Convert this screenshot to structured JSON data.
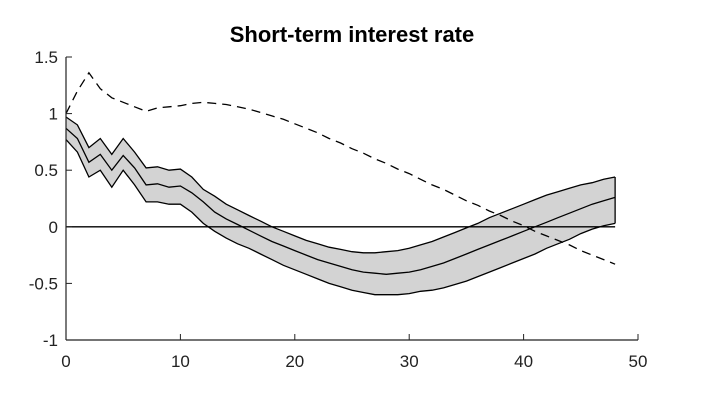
{
  "chart_data": {
    "type": "line",
    "title": "Short-term interest rate",
    "xlabel": "",
    "ylabel": "",
    "xlim": [
      0,
      50
    ],
    "ylim": [
      -1,
      1.5
    ],
    "x_ticks": [
      "0",
      "10",
      "20",
      "30",
      "40",
      "50"
    ],
    "y_ticks": [
      "-1",
      "-0.5",
      "0",
      "0.5",
      "1",
      "1.5"
    ],
    "grid": false,
    "legend": "none",
    "colors": {
      "band_fill": "#d3d3d3",
      "line": "#000000"
    },
    "series": [
      {
        "role": "median",
        "style": "solid",
        "x": [
          0,
          1,
          2,
          3,
          4,
          5,
          6,
          7,
          8,
          9,
          10,
          11,
          12,
          13,
          14,
          15,
          16,
          17,
          18,
          19,
          20,
          21,
          22,
          23,
          24,
          25,
          26,
          27,
          28,
          29,
          30,
          31,
          32,
          33,
          34,
          35,
          36,
          37,
          38,
          39,
          40,
          41,
          42,
          43,
          44,
          45,
          46,
          47,
          48
        ],
        "y": [
          0.87,
          0.78,
          0.57,
          0.64,
          0.5,
          0.63,
          0.52,
          0.37,
          0.38,
          0.35,
          0.36,
          0.3,
          0.22,
          0.13,
          0.07,
          0.02,
          -0.03,
          -0.08,
          -0.13,
          -0.17,
          -0.21,
          -0.25,
          -0.29,
          -0.32,
          -0.35,
          -0.38,
          -0.4,
          -0.41,
          -0.42,
          -0.41,
          -0.4,
          -0.38,
          -0.35,
          -0.32,
          -0.28,
          -0.24,
          -0.2,
          -0.16,
          -0.12,
          -0.08,
          -0.04,
          0,
          0.04,
          0.08,
          0.12,
          0.16,
          0.2,
          0.23,
          0.26
        ]
      },
      {
        "role": "band-upper",
        "style": "solid",
        "x": [
          0,
          1,
          2,
          3,
          4,
          5,
          6,
          7,
          8,
          9,
          10,
          11,
          12,
          13,
          14,
          15,
          16,
          17,
          18,
          19,
          20,
          21,
          22,
          23,
          24,
          25,
          26,
          27,
          28,
          29,
          30,
          31,
          32,
          33,
          34,
          35,
          36,
          37,
          38,
          39,
          40,
          41,
          42,
          43,
          44,
          45,
          46,
          47,
          48
        ],
        "y": [
          0.97,
          0.9,
          0.7,
          0.78,
          0.64,
          0.78,
          0.66,
          0.52,
          0.53,
          0.5,
          0.51,
          0.44,
          0.33,
          0.27,
          0.2,
          0.15,
          0.1,
          0.05,
          0,
          -0.04,
          -0.08,
          -0.12,
          -0.15,
          -0.18,
          -0.2,
          -0.22,
          -0.23,
          -0.23,
          -0.22,
          -0.21,
          -0.19,
          -0.16,
          -0.13,
          -0.09,
          -0.05,
          -0.01,
          0.03,
          0.08,
          0.12,
          0.16,
          0.2,
          0.24,
          0.28,
          0.31,
          0.34,
          0.37,
          0.39,
          0.42,
          0.44
        ]
      },
      {
        "role": "band-lower",
        "style": "solid",
        "x": [
          0,
          1,
          2,
          3,
          4,
          5,
          6,
          7,
          8,
          9,
          10,
          11,
          12,
          13,
          14,
          15,
          16,
          17,
          18,
          19,
          20,
          21,
          22,
          23,
          24,
          25,
          26,
          27,
          28,
          29,
          30,
          31,
          32,
          33,
          34,
          35,
          36,
          37,
          38,
          39,
          40,
          41,
          42,
          43,
          44,
          45,
          46,
          47,
          48
        ],
        "y": [
          0.77,
          0.66,
          0.44,
          0.5,
          0.35,
          0.5,
          0.37,
          0.22,
          0.22,
          0.2,
          0.2,
          0.13,
          0.03,
          -0.04,
          -0.1,
          -0.15,
          -0.19,
          -0.24,
          -0.29,
          -0.34,
          -0.38,
          -0.42,
          -0.46,
          -0.5,
          -0.53,
          -0.56,
          -0.58,
          -0.6,
          -0.6,
          -0.6,
          -0.59,
          -0.57,
          -0.56,
          -0.54,
          -0.51,
          -0.48,
          -0.44,
          -0.4,
          -0.36,
          -0.32,
          -0.28,
          -0.24,
          -0.19,
          -0.15,
          -0.11,
          -0.06,
          -0.02,
          0.01,
          0.03
        ]
      },
      {
        "role": "comparison",
        "style": "dashed",
        "x": [
          0,
          1,
          2,
          3,
          4,
          5,
          6,
          7,
          8,
          9,
          10,
          11,
          12,
          13,
          14,
          15,
          16,
          17,
          18,
          19,
          20,
          21,
          22,
          23,
          24,
          25,
          26,
          27,
          28,
          29,
          30,
          31,
          32,
          33,
          34,
          35,
          36,
          37,
          38,
          39,
          40,
          41,
          42,
          43,
          44,
          45,
          46,
          47,
          48
        ],
        "y": [
          1,
          1.2,
          1.36,
          1.22,
          1.14,
          1.1,
          1.06,
          1.02,
          1.05,
          1.06,
          1.07,
          1.09,
          1.1,
          1.09,
          1.08,
          1.06,
          1.04,
          1.01,
          0.98,
          0.95,
          0.91,
          0.87,
          0.83,
          0.78,
          0.74,
          0.69,
          0.65,
          0.6,
          0.56,
          0.51,
          0.47,
          0.42,
          0.37,
          0.33,
          0.28,
          0.23,
          0.19,
          0.14,
          0.1,
          0.05,
          0.01,
          -0.04,
          -0.08,
          -0.12,
          -0.16,
          -0.21,
          -0.25,
          -0.29,
          -0.33
        ]
      }
    ]
  }
}
